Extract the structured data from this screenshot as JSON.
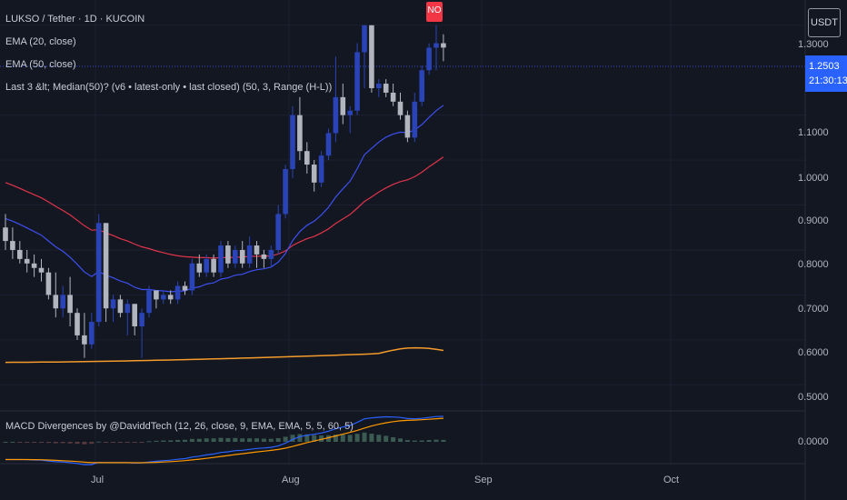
{
  "symbol_line": "LUKSO / Tether · 1D · KUCOIN",
  "indicators": [
    "EMA (20, close)",
    "EMA (50, close)",
    "Last 3 &lt; Median(50)? (v6 • latest-only • last closed) (50, 3, Range (H-L))"
  ],
  "macd_label": "MACD Divergences by @DaviddTech (12, 26, close, 9, EMA, EMA, 5, 5, 60, 5)",
  "unit_badge": "USDT",
  "signal_badge": "NO",
  "current_price": "1.2503",
  "countdown": "21:30:13",
  "price_axis": [
    "1.3000",
    "1.1000",
    "1.0000",
    "0.9000",
    "0.8000",
    "0.7000",
    "0.6000",
    "0.5000"
  ],
  "macd_axis": [
    "0.0000"
  ],
  "time_axis": [
    "Jul",
    "Aug",
    "Sep",
    "Oct"
  ],
  "colors": {
    "background": "#131722",
    "up_candle": "#2a44b8",
    "down_candle": "#b2b5be",
    "ema20": "#3d4ff0",
    "ema50": "#e0344a",
    "long_ma": "#f59b2b",
    "macd_line": "#2962ff",
    "signal_line": "#ff9800",
    "badge_red": "#f23645",
    "price_tag": "#2962ff"
  },
  "chart_data": {
    "type": "candlestick",
    "candles": [
      {
        "o": 0.85,
        "h": 0.88,
        "l": 0.8,
        "c": 0.82
      },
      {
        "o": 0.82,
        "h": 0.85,
        "l": 0.78,
        "c": 0.8
      },
      {
        "o": 0.8,
        "h": 0.82,
        "l": 0.77,
        "c": 0.78
      },
      {
        "o": 0.78,
        "h": 0.8,
        "l": 0.75,
        "c": 0.77
      },
      {
        "o": 0.77,
        "h": 0.79,
        "l": 0.74,
        "c": 0.76
      },
      {
        "o": 0.76,
        "h": 0.78,
        "l": 0.73,
        "c": 0.75
      },
      {
        "o": 0.75,
        "h": 0.76,
        "l": 0.69,
        "c": 0.7
      },
      {
        "o": 0.7,
        "h": 0.75,
        "l": 0.65,
        "c": 0.67
      },
      {
        "o": 0.67,
        "h": 0.72,
        "l": 0.65,
        "c": 0.7
      },
      {
        "o": 0.7,
        "h": 0.74,
        "l": 0.63,
        "c": 0.66
      },
      {
        "o": 0.66,
        "h": 0.67,
        "l": 0.6,
        "c": 0.61
      },
      {
        "o": 0.61,
        "h": 0.66,
        "l": 0.56,
        "c": 0.59
      },
      {
        "o": 0.59,
        "h": 0.66,
        "l": 0.58,
        "c": 0.64
      },
      {
        "o": 0.64,
        "h": 0.88,
        "l": 0.63,
        "c": 0.86
      },
      {
        "o": 0.86,
        "h": 0.86,
        "l": 0.64,
        "c": 0.67
      },
      {
        "o": 0.67,
        "h": 0.7,
        "l": 0.64,
        "c": 0.69
      },
      {
        "o": 0.69,
        "h": 0.7,
        "l": 0.65,
        "c": 0.66
      },
      {
        "o": 0.66,
        "h": 0.69,
        "l": 0.61,
        "c": 0.68
      },
      {
        "o": 0.68,
        "h": 0.68,
        "l": 0.61,
        "c": 0.63
      },
      {
        "o": 0.63,
        "h": 0.67,
        "l": 0.56,
        "c": 0.66
      },
      {
        "o": 0.66,
        "h": 0.72,
        "l": 0.65,
        "c": 0.71
      },
      {
        "o": 0.71,
        "h": 0.71,
        "l": 0.67,
        "c": 0.69
      },
      {
        "o": 0.69,
        "h": 0.71,
        "l": 0.68,
        "c": 0.7
      },
      {
        "o": 0.7,
        "h": 0.71,
        "l": 0.68,
        "c": 0.69
      },
      {
        "o": 0.69,
        "h": 0.73,
        "l": 0.68,
        "c": 0.72
      },
      {
        "o": 0.72,
        "h": 0.73,
        "l": 0.7,
        "c": 0.71
      },
      {
        "o": 0.71,
        "h": 0.78,
        "l": 0.7,
        "c": 0.77
      },
      {
        "o": 0.77,
        "h": 0.79,
        "l": 0.74,
        "c": 0.75
      },
      {
        "o": 0.75,
        "h": 0.79,
        "l": 0.74,
        "c": 0.78
      },
      {
        "o": 0.78,
        "h": 0.79,
        "l": 0.74,
        "c": 0.75
      },
      {
        "o": 0.75,
        "h": 0.82,
        "l": 0.74,
        "c": 0.81
      },
      {
        "o": 0.81,
        "h": 0.82,
        "l": 0.76,
        "c": 0.77
      },
      {
        "o": 0.77,
        "h": 0.81,
        "l": 0.76,
        "c": 0.8
      },
      {
        "o": 0.8,
        "h": 0.82,
        "l": 0.76,
        "c": 0.77
      },
      {
        "o": 0.77,
        "h": 0.83,
        "l": 0.76,
        "c": 0.81
      },
      {
        "o": 0.81,
        "h": 0.82,
        "l": 0.76,
        "c": 0.79
      },
      {
        "o": 0.79,
        "h": 0.8,
        "l": 0.76,
        "c": 0.78
      },
      {
        "o": 0.78,
        "h": 0.81,
        "l": 0.76,
        "c": 0.8
      },
      {
        "o": 0.8,
        "h": 0.9,
        "l": 0.79,
        "c": 0.88
      },
      {
        "o": 0.88,
        "h": 0.99,
        "l": 0.87,
        "c": 0.98
      },
      {
        "o": 0.98,
        "h": 1.12,
        "l": 0.96,
        "c": 1.1
      },
      {
        "o": 1.1,
        "h": 1.14,
        "l": 1.0,
        "c": 1.02
      },
      {
        "o": 1.02,
        "h": 1.04,
        "l": 0.97,
        "c": 0.99
      },
      {
        "o": 0.99,
        "h": 1.0,
        "l": 0.93,
        "c": 0.95
      },
      {
        "o": 0.95,
        "h": 1.02,
        "l": 0.94,
        "c": 1.01
      },
      {
        "o": 1.01,
        "h": 1.07,
        "l": 1.0,
        "c": 1.06
      },
      {
        "o": 1.06,
        "h": 1.23,
        "l": 1.04,
        "c": 1.14
      },
      {
        "o": 1.14,
        "h": 1.17,
        "l": 1.08,
        "c": 1.1
      },
      {
        "o": 1.1,
        "h": 1.12,
        "l": 1.06,
        "c": 1.11
      },
      {
        "o": 1.11,
        "h": 1.26,
        "l": 1.1,
        "c": 1.24
      },
      {
        "o": 1.24,
        "h": 1.3,
        "l": 1.16,
        "c": 1.3
      },
      {
        "o": 1.3,
        "h": 1.3,
        "l": 1.15,
        "c": 1.16
      },
      {
        "o": 1.16,
        "h": 1.18,
        "l": 1.14,
        "c": 1.17
      },
      {
        "o": 1.17,
        "h": 1.18,
        "l": 1.14,
        "c": 1.15
      },
      {
        "o": 1.15,
        "h": 1.17,
        "l": 1.12,
        "c": 1.13
      },
      {
        "o": 1.13,
        "h": 1.15,
        "l": 1.09,
        "c": 1.1
      },
      {
        "o": 1.1,
        "h": 1.11,
        "l": 1.04,
        "c": 1.05
      },
      {
        "o": 1.05,
        "h": 1.15,
        "l": 1.04,
        "c": 1.13
      },
      {
        "o": 1.13,
        "h": 1.21,
        "l": 1.12,
        "c": 1.2
      },
      {
        "o": 1.2,
        "h": 1.26,
        "l": 1.19,
        "c": 1.25
      },
      {
        "o": 1.25,
        "h": 1.3,
        "l": 1.2,
        "c": 1.26
      },
      {
        "o": 1.26,
        "h": 1.28,
        "l": 1.22,
        "c": 1.2503
      }
    ],
    "ema20": [
      0.87,
      0.864,
      0.857,
      0.849,
      0.841,
      0.833,
      0.82,
      0.807,
      0.797,
      0.784,
      0.768,
      0.751,
      0.741,
      0.752,
      0.744,
      0.738,
      0.731,
      0.726,
      0.717,
      0.712,
      0.712,
      0.71,
      0.709,
      0.707,
      0.708,
      0.709,
      0.715,
      0.718,
      0.724,
      0.727,
      0.735,
      0.738,
      0.744,
      0.746,
      0.752,
      0.756,
      0.758,
      0.762,
      0.773,
      0.792,
      0.821,
      0.841,
      0.855,
      0.864,
      0.878,
      0.895,
      0.918,
      0.936,
      0.953,
      0.981,
      1.012,
      1.026,
      1.04,
      1.051,
      1.058,
      1.062,
      1.061,
      1.067,
      1.079,
      1.095,
      1.11,
      1.122
    ],
    "ema50": [
      0.95,
      0.944,
      0.937,
      0.93,
      0.923,
      0.916,
      0.907,
      0.897,
      0.888,
      0.878,
      0.866,
      0.854,
      0.844,
      0.845,
      0.838,
      0.832,
      0.825,
      0.82,
      0.813,
      0.807,
      0.803,
      0.798,
      0.794,
      0.79,
      0.787,
      0.785,
      0.784,
      0.783,
      0.783,
      0.782,
      0.783,
      0.783,
      0.784,
      0.784,
      0.786,
      0.786,
      0.786,
      0.787,
      0.791,
      0.798,
      0.81,
      0.818,
      0.825,
      0.83,
      0.838,
      0.847,
      0.859,
      0.869,
      0.879,
      0.893,
      0.908,
      0.918,
      0.929,
      0.938,
      0.946,
      0.952,
      0.956,
      0.963,
      0.973,
      0.985,
      0.996,
      1.007
    ],
    "long_ma_start": 0.55,
    "long_ma_end": 0.575,
    "y_range": [
      0.45,
      1.34
    ]
  }
}
